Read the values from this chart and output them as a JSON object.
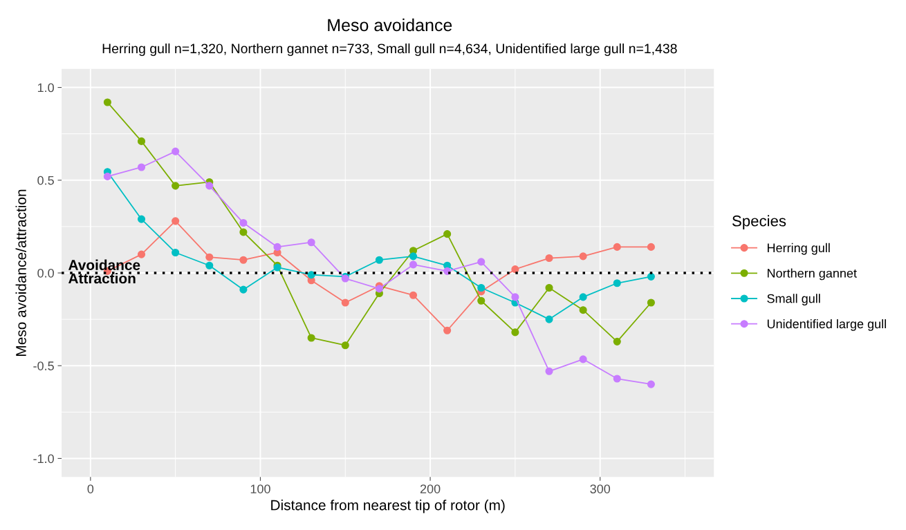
{
  "chart_data": {
    "type": "line",
    "title": "Meso avoidance",
    "subtitle": "Herring gull n=1,320, Northern gannet n=733, Small gull n=4,634, Unidentified large gull n=1,438",
    "xlabel": "Distance from nearest tip of rotor (m)",
    "ylabel": "Meso avoidance/attraction",
    "legend_title": "Species",
    "x": [
      10,
      30,
      50,
      70,
      90,
      110,
      130,
      150,
      170,
      190,
      210,
      230,
      250,
      270,
      290,
      310,
      330
    ],
    "series": [
      {
        "name": "Herring gull",
        "color": "#f8766d",
        "values": [
          0.01,
          0.1,
          0.28,
          0.085,
          0.07,
          0.11,
          -0.04,
          -0.16,
          -0.07,
          -0.12,
          -0.31,
          -0.1,
          0.02,
          0.08,
          0.09,
          0.14,
          0.14
        ]
      },
      {
        "name": "Northern gannet",
        "color": "#7cae00",
        "values": [
          0.92,
          0.71,
          0.47,
          0.49,
          0.22,
          0.04,
          -0.35,
          -0.39,
          -0.11,
          0.12,
          0.21,
          -0.15,
          -0.32,
          -0.08,
          -0.2,
          -0.37,
          -0.16
        ]
      },
      {
        "name": "Small gull",
        "color": "#00bfc4",
        "values": [
          0.545,
          0.29,
          0.11,
          0.04,
          -0.09,
          0.03,
          -0.01,
          -0.02,
          0.07,
          0.09,
          0.04,
          -0.08,
          -0.16,
          -0.25,
          -0.13,
          -0.055,
          -0.02
        ]
      },
      {
        "name": "Unidentified large gull",
        "color": "#c77cff",
        "values": [
          0.52,
          0.57,
          0.655,
          0.47,
          0.27,
          0.14,
          0.165,
          -0.03,
          -0.085,
          0.045,
          0.01,
          0.06,
          -0.13,
          -0.53,
          -0.465,
          -0.57,
          -0.6
        ]
      }
    ],
    "xlim": [
      -17,
      367
    ],
    "ylim": [
      -1.1,
      1.1
    ],
    "xticks": [
      0,
      100,
      200,
      300
    ],
    "yticks": [
      {
        "value": -1.0,
        "label": "-1.0"
      },
      {
        "value": -0.5,
        "label": "-0.5"
      },
      {
        "value": 0.0,
        "label": "0.0"
      },
      {
        "value": 0.5,
        "label": "0.5"
      },
      {
        "value": 1.0,
        "label": "1.0"
      }
    ],
    "ref_lines": [
      {
        "axis": "y",
        "value": 0,
        "color": "#000000",
        "line_style": "dotted"
      }
    ],
    "annotations": [
      "Avoidance",
      "Attraction"
    ],
    "grid": true,
    "legend": "right",
    "marker": "circle",
    "line_style": "solid"
  }
}
